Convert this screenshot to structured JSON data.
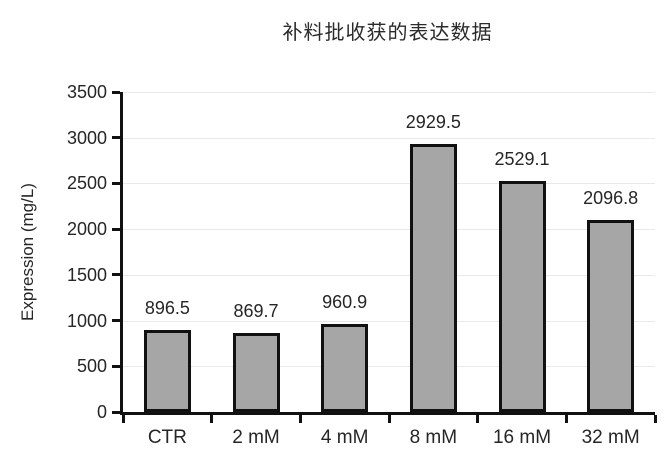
{
  "chart_data": {
    "type": "bar",
    "title": "补料批收获的表达数据",
    "categories": [
      "CTR",
      "2 mM",
      "4 mM",
      "8 mM",
      "16 mM",
      "32 mM"
    ],
    "values": [
      896.5,
      869.7,
      960.9,
      2929.5,
      2529.1,
      2096.8
    ],
    "value_labels": [
      "896.5",
      "869.7",
      "960.9",
      "2929.5",
      "2529.1",
      "2096.8"
    ],
    "xlabel": "",
    "ylabel": "Expression (mg/L)",
    "ylim": [
      0,
      3500
    ],
    "ytick_step": 500,
    "ytick_labels": [
      "0",
      "500",
      "1000",
      "1500",
      "2000",
      "2500",
      "3000",
      "3500"
    ],
    "grid": "horizontal",
    "legend": "none",
    "colors": {
      "bar_fill": "#a6a6a6",
      "bar_border": "#111111",
      "axis": "#111111",
      "gridline": "#e9e9e9",
      "text": "#262626",
      "background": "#ffffff"
    }
  }
}
